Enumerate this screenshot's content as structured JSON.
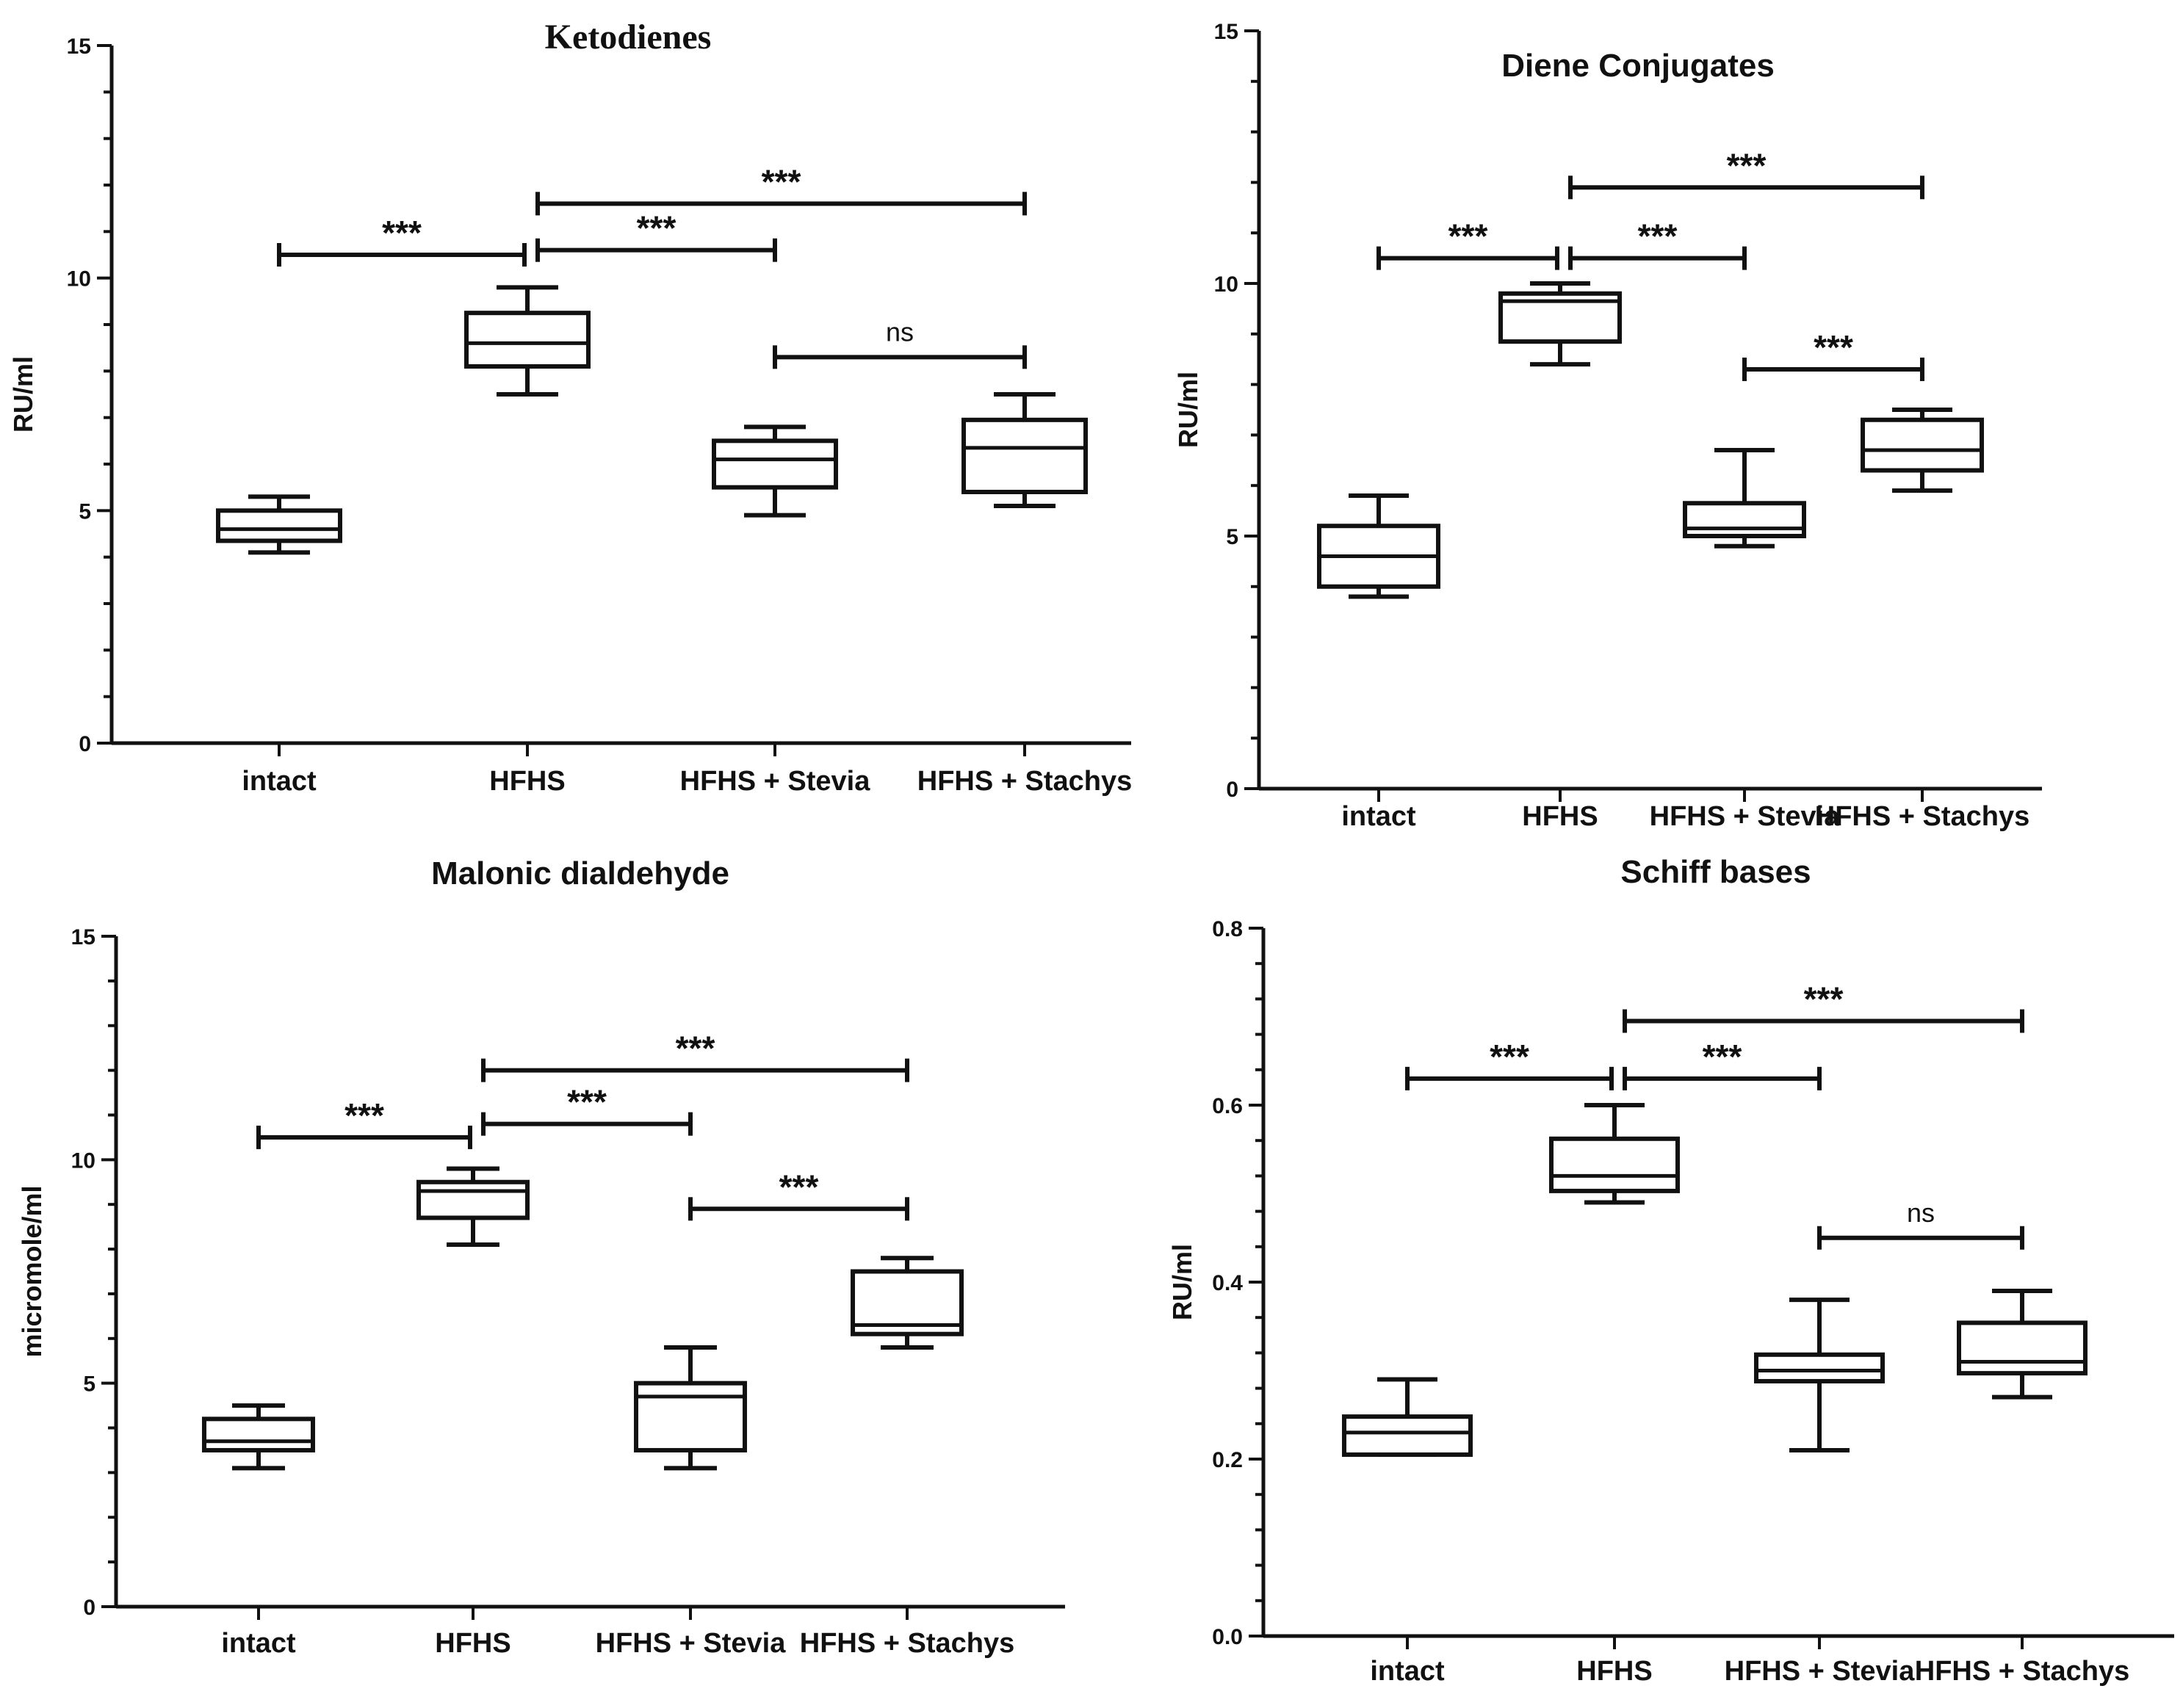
{
  "chart_data": [
    {
      "type": "box",
      "title": "Ketodienes",
      "ylabel": "RU/ml",
      "ylim": [
        0,
        15
      ],
      "yticks": [
        "0",
        "5",
        "10",
        "15"
      ],
      "categories": [
        "intact",
        "HFHS",
        "HFHS + Stevia",
        "HFHS + Stachys"
      ],
      "boxes": [
        {
          "min": 4.1,
          "q1": 4.35,
          "median": 4.6,
          "q3": 5.0,
          "max": 5.3
        },
        {
          "min": 7.5,
          "q1": 8.1,
          "median": 8.6,
          "q3": 9.25,
          "max": 9.8
        },
        {
          "min": 4.9,
          "q1": 5.5,
          "median": 6.1,
          "q3": 6.5,
          "max": 6.8
        },
        {
          "min": 5.1,
          "q1": 5.4,
          "median": 6.35,
          "q3": 6.95,
          "max": 7.5
        }
      ],
      "comparisons": [
        {
          "from": 0,
          "to": 1,
          "label": "***",
          "y": 10.5
        },
        {
          "from": 1,
          "to": 2,
          "label": "***",
          "y": 10.6
        },
        {
          "from": 1,
          "to": 3,
          "label": "***",
          "y": 11.6
        },
        {
          "from": 2,
          "to": 3,
          "label": "ns",
          "y": 8.3
        }
      ]
    },
    {
      "type": "box",
      "title": "Diene Conjugates",
      "ylabel": "RU/ml",
      "ylim": [
        0,
        15
      ],
      "yticks": [
        "0",
        "5",
        "10",
        "15"
      ],
      "categories": [
        "intact",
        "HFHS",
        "HFHS + Stevia",
        "HFHS + Stachys"
      ],
      "boxes": [
        {
          "min": 3.8,
          "q1": 4.0,
          "median": 4.6,
          "q3": 5.2,
          "max": 5.8
        },
        {
          "min": 8.4,
          "q1": 8.85,
          "median": 9.65,
          "q3": 9.8,
          "max": 10.0
        },
        {
          "min": 4.8,
          "q1": 5.0,
          "median": 5.15,
          "q3": 5.65,
          "max": 6.7
        },
        {
          "min": 5.9,
          "q1": 6.3,
          "median": 6.7,
          "q3": 7.3,
          "max": 7.5
        }
      ],
      "comparisons": [
        {
          "from": 0,
          "to": 1,
          "label": "***",
          "y": 10.5
        },
        {
          "from": 1,
          "to": 2,
          "label": "***",
          "y": 10.5
        },
        {
          "from": 1,
          "to": 3,
          "label": "***",
          "y": 11.9
        },
        {
          "from": 2,
          "to": 3,
          "label": "***",
          "y": 8.3
        }
      ]
    },
    {
      "type": "box",
      "title": "Malonic dialdehyde",
      "ylabel": "micromole/ml",
      "ylim": [
        0,
        15
      ],
      "yticks": [
        "0",
        "5",
        "10",
        "15"
      ],
      "categories": [
        "intact",
        "HFHS",
        "HFHS + Stevia",
        "HFHS + Stachys"
      ],
      "boxes": [
        {
          "min": 3.1,
          "q1": 3.5,
          "median": 3.7,
          "q3": 4.2,
          "max": 4.5
        },
        {
          "min": 8.1,
          "q1": 8.7,
          "median": 9.3,
          "q3": 9.5,
          "max": 9.8
        },
        {
          "min": 3.1,
          "q1": 3.5,
          "median": 4.7,
          "q3": 5.0,
          "max": 5.8
        },
        {
          "min": 5.8,
          "q1": 6.1,
          "median": 6.3,
          "q3": 7.5,
          "max": 7.8
        }
      ],
      "comparisons": [
        {
          "from": 0,
          "to": 1,
          "label": "***",
          "y": 10.5
        },
        {
          "from": 1,
          "to": 2,
          "label": "***",
          "y": 10.8
        },
        {
          "from": 1,
          "to": 3,
          "label": "***",
          "y": 12.0
        },
        {
          "from": 2,
          "to": 3,
          "label": "***",
          "y": 8.9
        }
      ]
    },
    {
      "type": "box",
      "title": "Schiff bases",
      "ylabel": "RU/ml",
      "ylim": [
        0,
        0.8
      ],
      "yticks": [
        "0.0",
        "0.2",
        "0.4",
        "0.6",
        "0.8"
      ],
      "categories": [
        "intact",
        "HFHS",
        "HFHS + Stevia",
        "HFHS + Stachys"
      ],
      "boxes": [
        {
          "min": 0.205,
          "q1": 0.205,
          "median": 0.23,
          "q3": 0.248,
          "max": 0.29
        },
        {
          "min": 0.49,
          "q1": 0.503,
          "median": 0.52,
          "q3": 0.562,
          "max": 0.6
        },
        {
          "min": 0.21,
          "q1": 0.288,
          "median": 0.3,
          "q3": 0.318,
          "max": 0.38
        },
        {
          "min": 0.27,
          "q1": 0.297,
          "median": 0.31,
          "q3": 0.354,
          "max": 0.39
        }
      ],
      "comparisons": [
        {
          "from": 0,
          "to": 1,
          "label": "***",
          "y": 0.63
        },
        {
          "from": 1,
          "to": 2,
          "label": "***",
          "y": 0.63
        },
        {
          "from": 1,
          "to": 3,
          "label": "***",
          "y": 0.695
        },
        {
          "from": 2,
          "to": 3,
          "label": "ns",
          "y": 0.45
        }
      ]
    }
  ]
}
